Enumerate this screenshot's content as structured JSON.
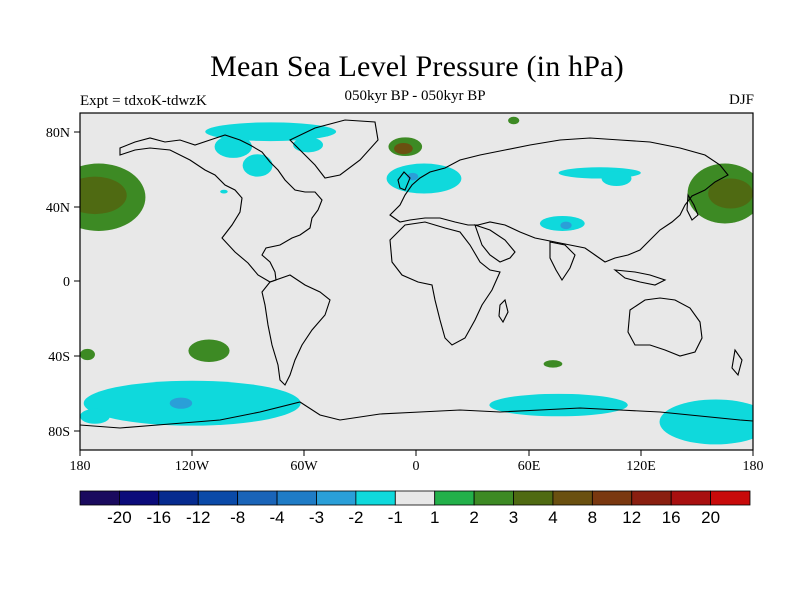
{
  "chart_data": {
    "type": "heatmap",
    "title": "Mean Sea Level Pressure (in hPa)",
    "subtitle": "050kyr BP - 050kyr BP",
    "left_label": "Expt = tdxoK-tdwzK",
    "right_label": "DJF",
    "x_ticks": [
      "180",
      "120W",
      "60W",
      "0",
      "60E",
      "120E",
      "180"
    ],
    "y_ticks": [
      "80N",
      "40N",
      "0",
      "40S",
      "80S"
    ],
    "xlim": [
      -180,
      180
    ],
    "ylim": [
      -90,
      90
    ],
    "colorbar": {
      "colors": [
        "#1a0a5e",
        "#0b0b7a",
        "#062b8f",
        "#0a4aa8",
        "#1a64b8",
        "#1f7cc6",
        "#2a9fd8",
        "#0fd9dc",
        "#e8e8e8",
        "#23b04a",
        "#3d8a24",
        "#4f6a12",
        "#6a5010",
        "#7a3810",
        "#8a1f10",
        "#a81010",
        "#c80a0a"
      ],
      "labels": [
        "-20",
        "-16",
        "-12",
        "-8",
        "-4",
        "-3",
        "-2",
        "-1",
        "1",
        "2",
        "3",
        "4",
        "8",
        "12",
        "16",
        "20"
      ]
    },
    "regions": [
      {
        "name": "N Pacific high (west)",
        "level": 2,
        "lon": -170,
        "lat": 45,
        "w": 25,
        "h": 18
      },
      {
        "name": "N Pacific high core (west)",
        "level": 3,
        "lon": -172,
        "lat": 46,
        "w": 17,
        "h": 10
      },
      {
        "name": "NW Pacific high",
        "level": 2,
        "lon": 165,
        "lat": 47,
        "w": 20,
        "h": 16
      },
      {
        "name": "NW Pacific high core",
        "level": 3,
        "lon": 168,
        "lat": 47,
        "w": 12,
        "h": 8
      },
      {
        "name": "Arctic Canada",
        "level": -1,
        "lon": -78,
        "lat": 80,
        "w": 35,
        "h": 5
      },
      {
        "name": "Arctic islands",
        "level": -1,
        "lon": -98,
        "lat": 72,
        "w": 10,
        "h": 6
      },
      {
        "name": "Hudson Bay",
        "level": -1,
        "lon": -85,
        "lat": 62,
        "w": 8,
        "h": 6
      },
      {
        "name": "Baffin Bay",
        "level": -1,
        "lon": -58,
        "lat": 73,
        "w": 8,
        "h": 4
      },
      {
        "name": "Greenland high",
        "level": 2,
        "lon": -6,
        "lat": 72,
        "w": 9,
        "h": 5
      },
      {
        "name": "Greenland high core",
        "level": 4,
        "lon": -7,
        "lat": 71,
        "w": 5,
        "h": 3
      },
      {
        "name": "North Atlantic low",
        "level": -1,
        "lon": 4,
        "lat": 55,
        "w": 20,
        "h": 8
      },
      {
        "name": "N Atlantic low core",
        "level": -2,
        "lon": -2,
        "lat": 56,
        "w": 3,
        "h": 2
      },
      {
        "name": "Siberia low",
        "level": -1,
        "lon": 98,
        "lat": 58,
        "w": 22,
        "h": 3
      },
      {
        "name": "Siberia low east",
        "level": -1,
        "lon": 107,
        "lat": 55,
        "w": 8,
        "h": 4
      },
      {
        "name": "Central Asia low",
        "level": -1,
        "lon": 78,
        "lat": 31,
        "w": 12,
        "h": 4
      },
      {
        "name": "Central Asia low core",
        "level": -2,
        "lon": 80,
        "lat": 30,
        "w": 3,
        "h": 2
      },
      {
        "name": "Barents small high",
        "level": 2,
        "lon": 52,
        "lat": 86,
        "w": 3,
        "h": 2
      },
      {
        "name": "Hawaii small low",
        "level": -1,
        "lon": -103,
        "lat": 48,
        "w": 2,
        "h": 1
      },
      {
        "name": "S Pacific high",
        "level": 2,
        "lon": -111,
        "lat": -37,
        "w": 11,
        "h": 6
      },
      {
        "name": "SW Pacific high",
        "level": 2,
        "lon": -176,
        "lat": -39,
        "w": 4,
        "h": 3
      },
      {
        "name": "S Indian small high",
        "level": 2,
        "lon": 73,
        "lat": -44,
        "w": 5,
        "h": 2
      },
      {
        "name": "Southern Ocean low (Pacific)",
        "level": -1,
        "lon": -120,
        "lat": -65,
        "w": 58,
        "h": 12
      },
      {
        "name": "Southern Ocean low core",
        "level": -2,
        "lon": -126,
        "lat": -65,
        "w": 6,
        "h": 3
      },
      {
        "name": "Southern Ocean low (Indian)",
        "level": -1,
        "lon": 76,
        "lat": -66,
        "w": 37,
        "h": 6
      },
      {
        "name": "Southern Ocean low (SW Pacific)",
        "level": -1,
        "lon": 160,
        "lat": -75,
        "w": 30,
        "h": 12
      },
      {
        "name": "Ross Sea low",
        "level": -1,
        "lon": -172,
        "lat": -72,
        "w": 8,
        "h": 4
      }
    ]
  }
}
